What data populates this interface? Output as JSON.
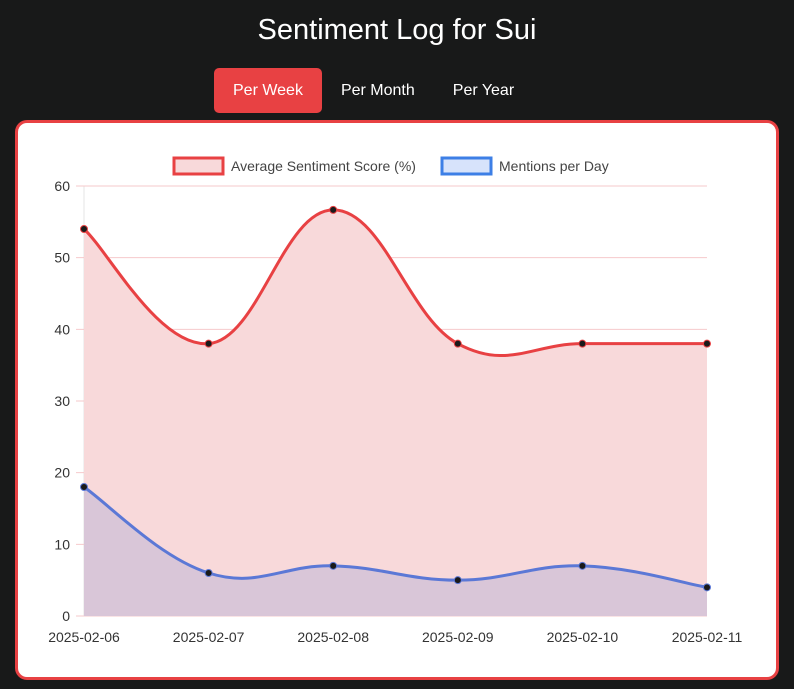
{
  "header": {
    "title": "Sentiment Log for Sui"
  },
  "tabs": [
    {
      "label": "Per Week",
      "active": true
    },
    {
      "label": "Per Month",
      "active": false
    },
    {
      "label": "Per Year",
      "active": false
    }
  ],
  "colors": {
    "background": "#181919",
    "accent": "#e84143",
    "sentiment_line": "#e84143",
    "sentiment_fill": "#f8d9da",
    "mentions_line": "#5b78d6",
    "mentions_fill": "#d9c6d8",
    "point": "#1a1a1a"
  },
  "chart_data": {
    "type": "line",
    "title": "",
    "categories": [
      "2025-02-06",
      "2025-02-07",
      "2025-02-08",
      "2025-02-09",
      "2025-02-10",
      "2025-02-11"
    ],
    "series": [
      {
        "name": "Average Sentiment Score (%)",
        "values": [
          54,
          38,
          56.67,
          38,
          38,
          38
        ],
        "fill": true
      },
      {
        "name": "Mentions per Day",
        "values": [
          18,
          6,
          7,
          5,
          7,
          4
        ],
        "fill": true
      }
    ],
    "yticks": [
      0,
      10,
      20,
      30,
      40,
      50,
      60
    ],
    "ylim": [
      0,
      60
    ],
    "xlabel": "",
    "ylabel": "",
    "grid": true,
    "legend_position": "top",
    "smooth": true
  }
}
